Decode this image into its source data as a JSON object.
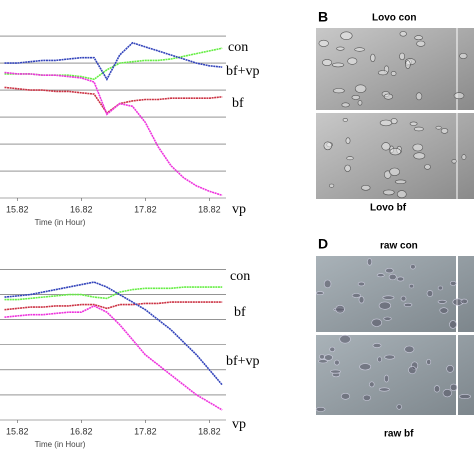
{
  "chart_data": [
    {
      "type": "line",
      "x_label": "Time (in Hour)",
      "x": [
        15.62,
        15.82,
        16.02,
        16.22,
        16.42,
        16.62,
        16.82,
        17.02,
        17.22,
        17.42,
        17.62,
        17.82,
        18.02,
        18.22,
        18.42,
        18.62,
        18.82,
        19.02
      ],
      "xlim": [
        15.55,
        19.08
      ],
      "xticks": [
        15.82,
        16.82,
        17.82,
        18.82
      ],
      "ylim": [
        0,
        6.3
      ],
      "yticks": [
        0,
        1,
        2,
        3,
        4,
        5,
        6
      ],
      "grid": true,
      "series": [
        {
          "name": "con",
          "color": "#66ee44",
          "values": [
            4.6,
            4.6,
            4.6,
            4.55,
            4.55,
            4.55,
            4.5,
            4.4,
            4.75,
            5.0,
            5.05,
            5.1,
            5.1,
            5.15,
            5.25,
            5.35,
            5.45,
            5.55
          ]
        },
        {
          "name": "bf+vp",
          "color": "#3344bb",
          "values": [
            5.0,
            5.0,
            5.05,
            5.1,
            5.1,
            5.15,
            5.2,
            5.2,
            4.4,
            5.3,
            5.75,
            5.6,
            5.45,
            5.3,
            5.15,
            5.0,
            4.9,
            4.85
          ]
        },
        {
          "name": "bf",
          "color": "#cc3344",
          "values": [
            4.1,
            4.05,
            4.0,
            4.0,
            3.95,
            3.95,
            3.9,
            3.85,
            3.15,
            3.5,
            3.6,
            3.65,
            3.65,
            3.7,
            3.7,
            3.7,
            3.7,
            3.75
          ]
        },
        {
          "name": "vp",
          "color": "#ee33dd",
          "values": [
            4.65,
            4.6,
            4.6,
            4.55,
            4.55,
            4.5,
            4.45,
            4.3,
            3.1,
            3.5,
            3.4,
            2.8,
            1.9,
            1.2,
            0.75,
            0.45,
            0.25,
            0.1
          ]
        }
      ]
    },
    {
      "type": "line",
      "x_label": "Time (in Hour)",
      "x": [
        15.62,
        15.82,
        16.02,
        16.22,
        16.42,
        16.62,
        16.82,
        17.02,
        17.22,
        17.42,
        17.62,
        17.82,
        18.02,
        18.22,
        18.42,
        18.62,
        18.82,
        19.02
      ],
      "xlim": [
        15.55,
        19.08
      ],
      "xticks": [
        15.82,
        16.82,
        17.82,
        18.82
      ],
      "ylim": [
        0,
        6.3
      ],
      "yticks": [
        0,
        1,
        2,
        3,
        4,
        5,
        6
      ],
      "grid": true,
      "series": [
        {
          "name": "con",
          "color": "#66ee44",
          "values": [
            4.8,
            4.8,
            4.85,
            4.9,
            4.95,
            5.0,
            5.0,
            4.9,
            4.85,
            5.1,
            5.2,
            5.25,
            5.25,
            5.25,
            5.3,
            5.3,
            5.3,
            5.3
          ]
        },
        {
          "name": "bf",
          "color": "#cc3344",
          "values": [
            4.4,
            4.45,
            4.5,
            4.5,
            4.55,
            4.55,
            4.6,
            4.6,
            4.45,
            4.6,
            4.6,
            4.65,
            4.65,
            4.7,
            4.7,
            4.7,
            4.7,
            4.7
          ]
        },
        {
          "name": "bf+vp",
          "color": "#3344bb",
          "values": [
            4.9,
            4.95,
            5.0,
            5.1,
            5.2,
            5.3,
            5.4,
            5.5,
            5.3,
            5.0,
            4.7,
            4.4,
            4.0,
            3.6,
            3.1,
            2.6,
            2.0,
            1.4
          ]
        },
        {
          "name": "vp",
          "color": "#ee33dd",
          "values": [
            4.1,
            4.15,
            4.2,
            4.2,
            4.25,
            4.3,
            4.3,
            4.55,
            4.3,
            3.8,
            3.2,
            2.6,
            2.2,
            1.8,
            1.4,
            1.0,
            0.7,
            0.4
          ]
        }
      ]
    }
  ],
  "panels": [
    {
      "letter": "B",
      "top_label": "Lovo con",
      "bottom_label": "Lovo bf"
    },
    {
      "letter": "D",
      "top_label": "raw con",
      "bottom_label": "raw bf"
    }
  ]
}
